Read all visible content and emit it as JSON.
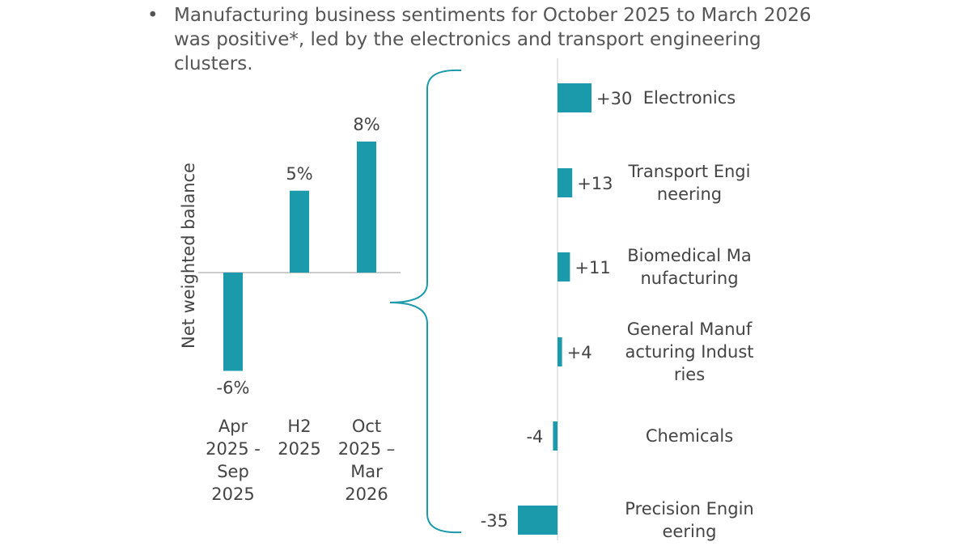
{
  "bullet": "Manufacturing business sentiments for October 2025 to March 2026 was positive*, led by the electronics and transport engineering clusters.",
  "chart_data": [
    {
      "type": "bar",
      "y_label": "Net weighted balance",
      "categories": [
        "Apr 2025 - Sep 2025",
        "H2 2025",
        "Oct 2025 – Mar 2026"
      ],
      "values": [
        -6,
        5,
        8
      ],
      "value_labels": [
        "-6%",
        "5%",
        "8%"
      ],
      "color": "#1a9aaa"
    },
    {
      "type": "hbar",
      "categories": [
        "Electronics",
        "Transport Engineering",
        "Biomedical Manufacturing",
        "General Manufacturing Industries",
        "Chemicals",
        "Precision Engineering"
      ],
      "values": [
        30,
        13,
        11,
        4,
        -4,
        -35
      ],
      "value_labels": [
        "+30",
        "+13",
        "+11",
        "+4",
        "-4",
        "-35"
      ],
      "color": "#1a9aaa"
    }
  ]
}
